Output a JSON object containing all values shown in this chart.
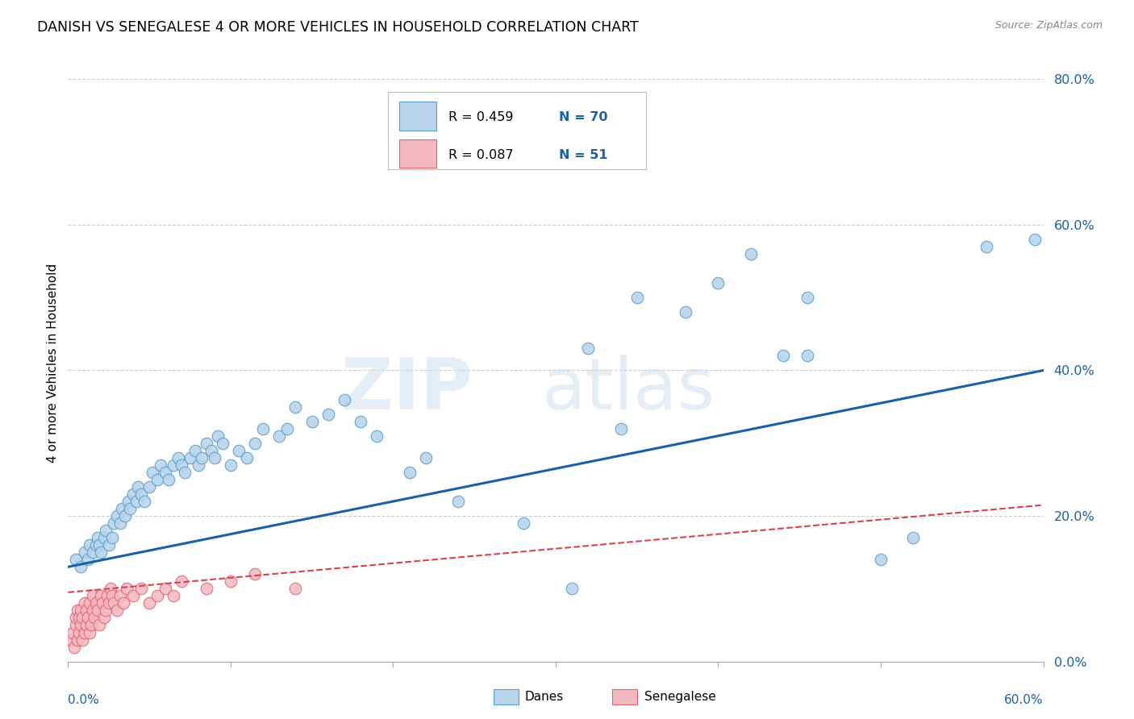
{
  "title": "DANISH VS SENEGALESE 4 OR MORE VEHICLES IN HOUSEHOLD CORRELATION CHART",
  "source": "Source: ZipAtlas.com",
  "ylabel": "4 or more Vehicles in Household",
  "yticks": [
    0.0,
    0.2,
    0.4,
    0.6,
    0.8
  ],
  "ytick_labels": [
    "0.0%",
    "20.0%",
    "40.0%",
    "60.0%",
    "80.0%"
  ],
  "xmin": 0.0,
  "xmax": 0.6,
  "ymin": 0.0,
  "ymax": 0.82,
  "danes_color": "#b8d4eb",
  "danes_edge_color": "#5b9dc9",
  "senegalese_color": "#f4b8c1",
  "senegalese_edge_color": "#e06070",
  "regression_danes_color": "#1a5fa8",
  "regression_senegalese_color": "#d94050",
  "regression_danes_x0": 0.0,
  "regression_danes_y0": 0.13,
  "regression_danes_x1": 0.6,
  "regression_danes_y1": 0.4,
  "regression_sene_x0": 0.0,
  "regression_sene_y0": 0.095,
  "regression_sene_x1": 0.6,
  "regression_sene_y1": 0.215,
  "danes_x": [
    0.005,
    0.008,
    0.01,
    0.012,
    0.013,
    0.015,
    0.017,
    0.018,
    0.019,
    0.02,
    0.022,
    0.023,
    0.025,
    0.027,
    0.028,
    0.03,
    0.032,
    0.033,
    0.035,
    0.037,
    0.038,
    0.04,
    0.042,
    0.043,
    0.045,
    0.047,
    0.05,
    0.052,
    0.055,
    0.057,
    0.06,
    0.062,
    0.065,
    0.068,
    0.07,
    0.072,
    0.075,
    0.078,
    0.08,
    0.082,
    0.085,
    0.088,
    0.09,
    0.092,
    0.095,
    0.1,
    0.105,
    0.11,
    0.115,
    0.12,
    0.13,
    0.135,
    0.14,
    0.15,
    0.16,
    0.17,
    0.18,
    0.19,
    0.21,
    0.22,
    0.24,
    0.28,
    0.31,
    0.34,
    0.44,
    0.455,
    0.5,
    0.52,
    0.565,
    0.595
  ],
  "danes_y": [
    0.14,
    0.13,
    0.15,
    0.14,
    0.16,
    0.15,
    0.16,
    0.17,
    0.16,
    0.15,
    0.17,
    0.18,
    0.16,
    0.17,
    0.19,
    0.2,
    0.19,
    0.21,
    0.2,
    0.22,
    0.21,
    0.23,
    0.22,
    0.24,
    0.23,
    0.22,
    0.24,
    0.26,
    0.25,
    0.27,
    0.26,
    0.25,
    0.27,
    0.28,
    0.27,
    0.26,
    0.28,
    0.29,
    0.27,
    0.28,
    0.3,
    0.29,
    0.28,
    0.31,
    0.3,
    0.27,
    0.29,
    0.28,
    0.3,
    0.32,
    0.31,
    0.32,
    0.35,
    0.33,
    0.34,
    0.36,
    0.33,
    0.31,
    0.26,
    0.28,
    0.22,
    0.19,
    0.1,
    0.32,
    0.42,
    0.42,
    0.14,
    0.17,
    0.57,
    0.58
  ],
  "danes_y_outliers_extra": [
    0.43,
    0.5,
    0.48,
    0.52,
    0.5,
    0.56
  ],
  "danes_x_outliers_extra": [
    0.32,
    0.35,
    0.38,
    0.4,
    0.455,
    0.42
  ],
  "senegalese_x": [
    0.002,
    0.003,
    0.004,
    0.005,
    0.005,
    0.006,
    0.006,
    0.007,
    0.007,
    0.008,
    0.008,
    0.009,
    0.009,
    0.01,
    0.01,
    0.011,
    0.011,
    0.012,
    0.013,
    0.013,
    0.014,
    0.015,
    0.015,
    0.016,
    0.017,
    0.018,
    0.019,
    0.02,
    0.021,
    0.022,
    0.023,
    0.024,
    0.025,
    0.026,
    0.027,
    0.028,
    0.03,
    0.032,
    0.034,
    0.036,
    0.04,
    0.045,
    0.05,
    0.055,
    0.06,
    0.065,
    0.07,
    0.085,
    0.1,
    0.115,
    0.14
  ],
  "senegalese_y": [
    0.03,
    0.04,
    0.02,
    0.05,
    0.06,
    0.03,
    0.07,
    0.04,
    0.06,
    0.05,
    0.07,
    0.03,
    0.06,
    0.04,
    0.08,
    0.05,
    0.07,
    0.06,
    0.04,
    0.08,
    0.05,
    0.07,
    0.09,
    0.06,
    0.08,
    0.07,
    0.05,
    0.09,
    0.08,
    0.06,
    0.07,
    0.09,
    0.08,
    0.1,
    0.09,
    0.08,
    0.07,
    0.09,
    0.08,
    0.1,
    0.09,
    0.1,
    0.08,
    0.09,
    0.1,
    0.09,
    0.11,
    0.1,
    0.11,
    0.12,
    0.1
  ],
  "watermark_zip": "ZIP",
  "watermark_atlas": "atlas",
  "legend_danes_label": "R = 0.459   N = 70",
  "legend_sene_label": "R = 0.087   N = 51",
  "bottom_legend_danes": "Danes",
  "bottom_legend_sene": "Senegalese"
}
